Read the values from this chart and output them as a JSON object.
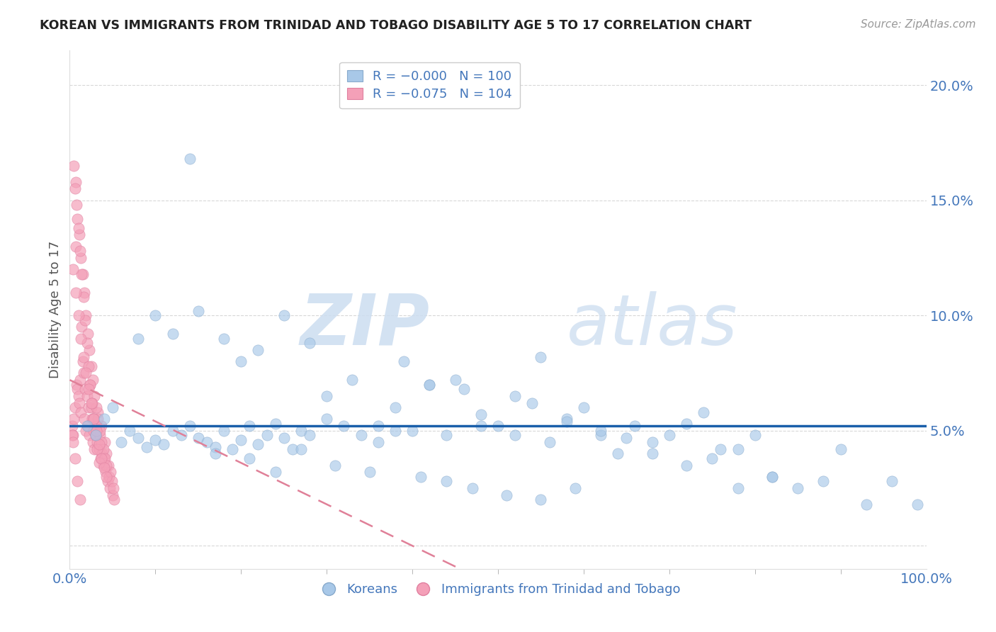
{
  "title": "KOREAN VS IMMIGRANTS FROM TRINIDAD AND TOBAGO DISABILITY AGE 5 TO 17 CORRELATION CHART",
  "source": "Source: ZipAtlas.com",
  "ylabel": "Disability Age 5 to 17",
  "ytick_values": [
    0.0,
    0.05,
    0.1,
    0.15,
    0.2
  ],
  "ytick_labels": [
    "",
    "5.0%",
    "10.0%",
    "15.0%",
    "20.0%"
  ],
  "xlim": [
    0.0,
    1.0
  ],
  "ylim": [
    -0.01,
    0.215
  ],
  "watermark_zip": "ZIP",
  "watermark_atlas": "atlas",
  "blue_color": "#a8c8e8",
  "pink_color": "#f4a0b8",
  "trend_blue_color": "#1a5faa",
  "trend_pink_color": "#e08098",
  "axis_color": "#4477bb",
  "grid_color": "#d8d8d8",
  "blue_intercept": 0.052,
  "blue_slope": 0.0,
  "pink_intercept": 0.072,
  "pink_slope": -0.18,
  "korean_x": [
    0.02,
    0.03,
    0.04,
    0.05,
    0.06,
    0.07,
    0.08,
    0.09,
    0.1,
    0.11,
    0.12,
    0.13,
    0.14,
    0.15,
    0.16,
    0.17,
    0.18,
    0.19,
    0.2,
    0.21,
    0.22,
    0.23,
    0.24,
    0.25,
    0.26,
    0.27,
    0.28,
    0.3,
    0.32,
    0.34,
    0.36,
    0.38,
    0.4,
    0.42,
    0.44,
    0.46,
    0.48,
    0.5,
    0.52,
    0.54,
    0.56,
    0.58,
    0.6,
    0.62,
    0.64,
    0.66,
    0.68,
    0.7,
    0.72,
    0.74,
    0.76,
    0.78,
    0.8,
    0.82,
    0.85,
    0.88,
    0.9,
    0.93,
    0.96,
    0.99,
    0.08,
    0.1,
    0.12,
    0.15,
    0.18,
    0.2,
    0.22,
    0.25,
    0.28,
    0.3,
    0.33,
    0.36,
    0.39,
    0.42,
    0.45,
    0.48,
    0.52,
    0.55,
    0.58,
    0.62,
    0.65,
    0.68,
    0.72,
    0.75,
    0.78,
    0.82,
    0.14,
    0.17,
    0.21,
    0.24,
    0.27,
    0.31,
    0.35,
    0.38,
    0.41,
    0.44,
    0.47,
    0.51,
    0.55,
    0.59
  ],
  "korean_y": [
    0.052,
    0.048,
    0.055,
    0.06,
    0.045,
    0.05,
    0.047,
    0.043,
    0.046,
    0.044,
    0.05,
    0.048,
    0.052,
    0.047,
    0.045,
    0.043,
    0.05,
    0.042,
    0.046,
    0.052,
    0.044,
    0.048,
    0.053,
    0.047,
    0.042,
    0.05,
    0.048,
    0.055,
    0.052,
    0.048,
    0.045,
    0.06,
    0.05,
    0.07,
    0.048,
    0.068,
    0.057,
    0.052,
    0.048,
    0.062,
    0.045,
    0.055,
    0.06,
    0.048,
    0.04,
    0.052,
    0.045,
    0.048,
    0.053,
    0.058,
    0.042,
    0.042,
    0.048,
    0.03,
    0.025,
    0.028,
    0.042,
    0.018,
    0.028,
    0.018,
    0.09,
    0.1,
    0.092,
    0.102,
    0.09,
    0.08,
    0.085,
    0.1,
    0.088,
    0.065,
    0.072,
    0.052,
    0.08,
    0.07,
    0.072,
    0.052,
    0.065,
    0.082,
    0.054,
    0.05,
    0.047,
    0.04,
    0.035,
    0.038,
    0.025,
    0.03,
    0.168,
    0.04,
    0.038,
    0.032,
    0.042,
    0.035,
    0.032,
    0.05,
    0.03,
    0.028,
    0.025,
    0.022,
    0.02,
    0.025
  ],
  "trinidad_x": [
    0.003,
    0.004,
    0.005,
    0.006,
    0.007,
    0.008,
    0.009,
    0.01,
    0.011,
    0.012,
    0.013,
    0.014,
    0.015,
    0.016,
    0.017,
    0.018,
    0.019,
    0.02,
    0.021,
    0.022,
    0.023,
    0.024,
    0.025,
    0.026,
    0.027,
    0.028,
    0.029,
    0.03,
    0.031,
    0.032,
    0.033,
    0.034,
    0.035,
    0.036,
    0.037,
    0.038,
    0.039,
    0.04,
    0.041,
    0.042,
    0.043,
    0.044,
    0.045,
    0.046,
    0.047,
    0.048,
    0.049,
    0.05,
    0.051,
    0.052,
    0.005,
    0.007,
    0.009,
    0.011,
    0.013,
    0.015,
    0.017,
    0.019,
    0.021,
    0.023,
    0.025,
    0.027,
    0.029,
    0.031,
    0.033,
    0.035,
    0.037,
    0.039,
    0.041,
    0.043,
    0.006,
    0.008,
    0.01,
    0.012,
    0.014,
    0.016,
    0.018,
    0.02,
    0.022,
    0.024,
    0.026,
    0.028,
    0.03,
    0.032,
    0.034,
    0.004,
    0.007,
    0.01,
    0.013,
    0.016,
    0.019,
    0.022,
    0.025,
    0.028,
    0.031,
    0.034,
    0.037,
    0.04,
    0.043,
    0.003,
    0.004,
    0.006,
    0.009,
    0.012
  ],
  "trinidad_y": [
    0.052,
    0.048,
    0.055,
    0.06,
    0.13,
    0.07,
    0.068,
    0.065,
    0.062,
    0.072,
    0.058,
    0.095,
    0.08,
    0.075,
    0.055,
    0.068,
    0.05,
    0.065,
    0.052,
    0.06,
    0.048,
    0.07,
    0.06,
    0.055,
    0.045,
    0.05,
    0.042,
    0.048,
    0.052,
    0.045,
    0.058,
    0.042,
    0.048,
    0.038,
    0.052,
    0.04,
    0.035,
    0.038,
    0.045,
    0.032,
    0.04,
    0.028,
    0.035,
    0.03,
    0.025,
    0.032,
    0.028,
    0.022,
    0.025,
    0.02,
    0.165,
    0.158,
    0.142,
    0.135,
    0.125,
    0.118,
    0.11,
    0.1,
    0.092,
    0.085,
    0.078,
    0.072,
    0.065,
    0.06,
    0.055,
    0.05,
    0.045,
    0.042,
    0.038,
    0.035,
    0.155,
    0.148,
    0.138,
    0.128,
    0.118,
    0.108,
    0.098,
    0.088,
    0.078,
    0.07,
    0.062,
    0.055,
    0.048,
    0.042,
    0.036,
    0.12,
    0.11,
    0.1,
    0.09,
    0.082,
    0.075,
    0.068,
    0.062,
    0.055,
    0.05,
    0.044,
    0.038,
    0.034,
    0.03,
    0.048,
    0.045,
    0.038,
    0.028,
    0.02
  ]
}
